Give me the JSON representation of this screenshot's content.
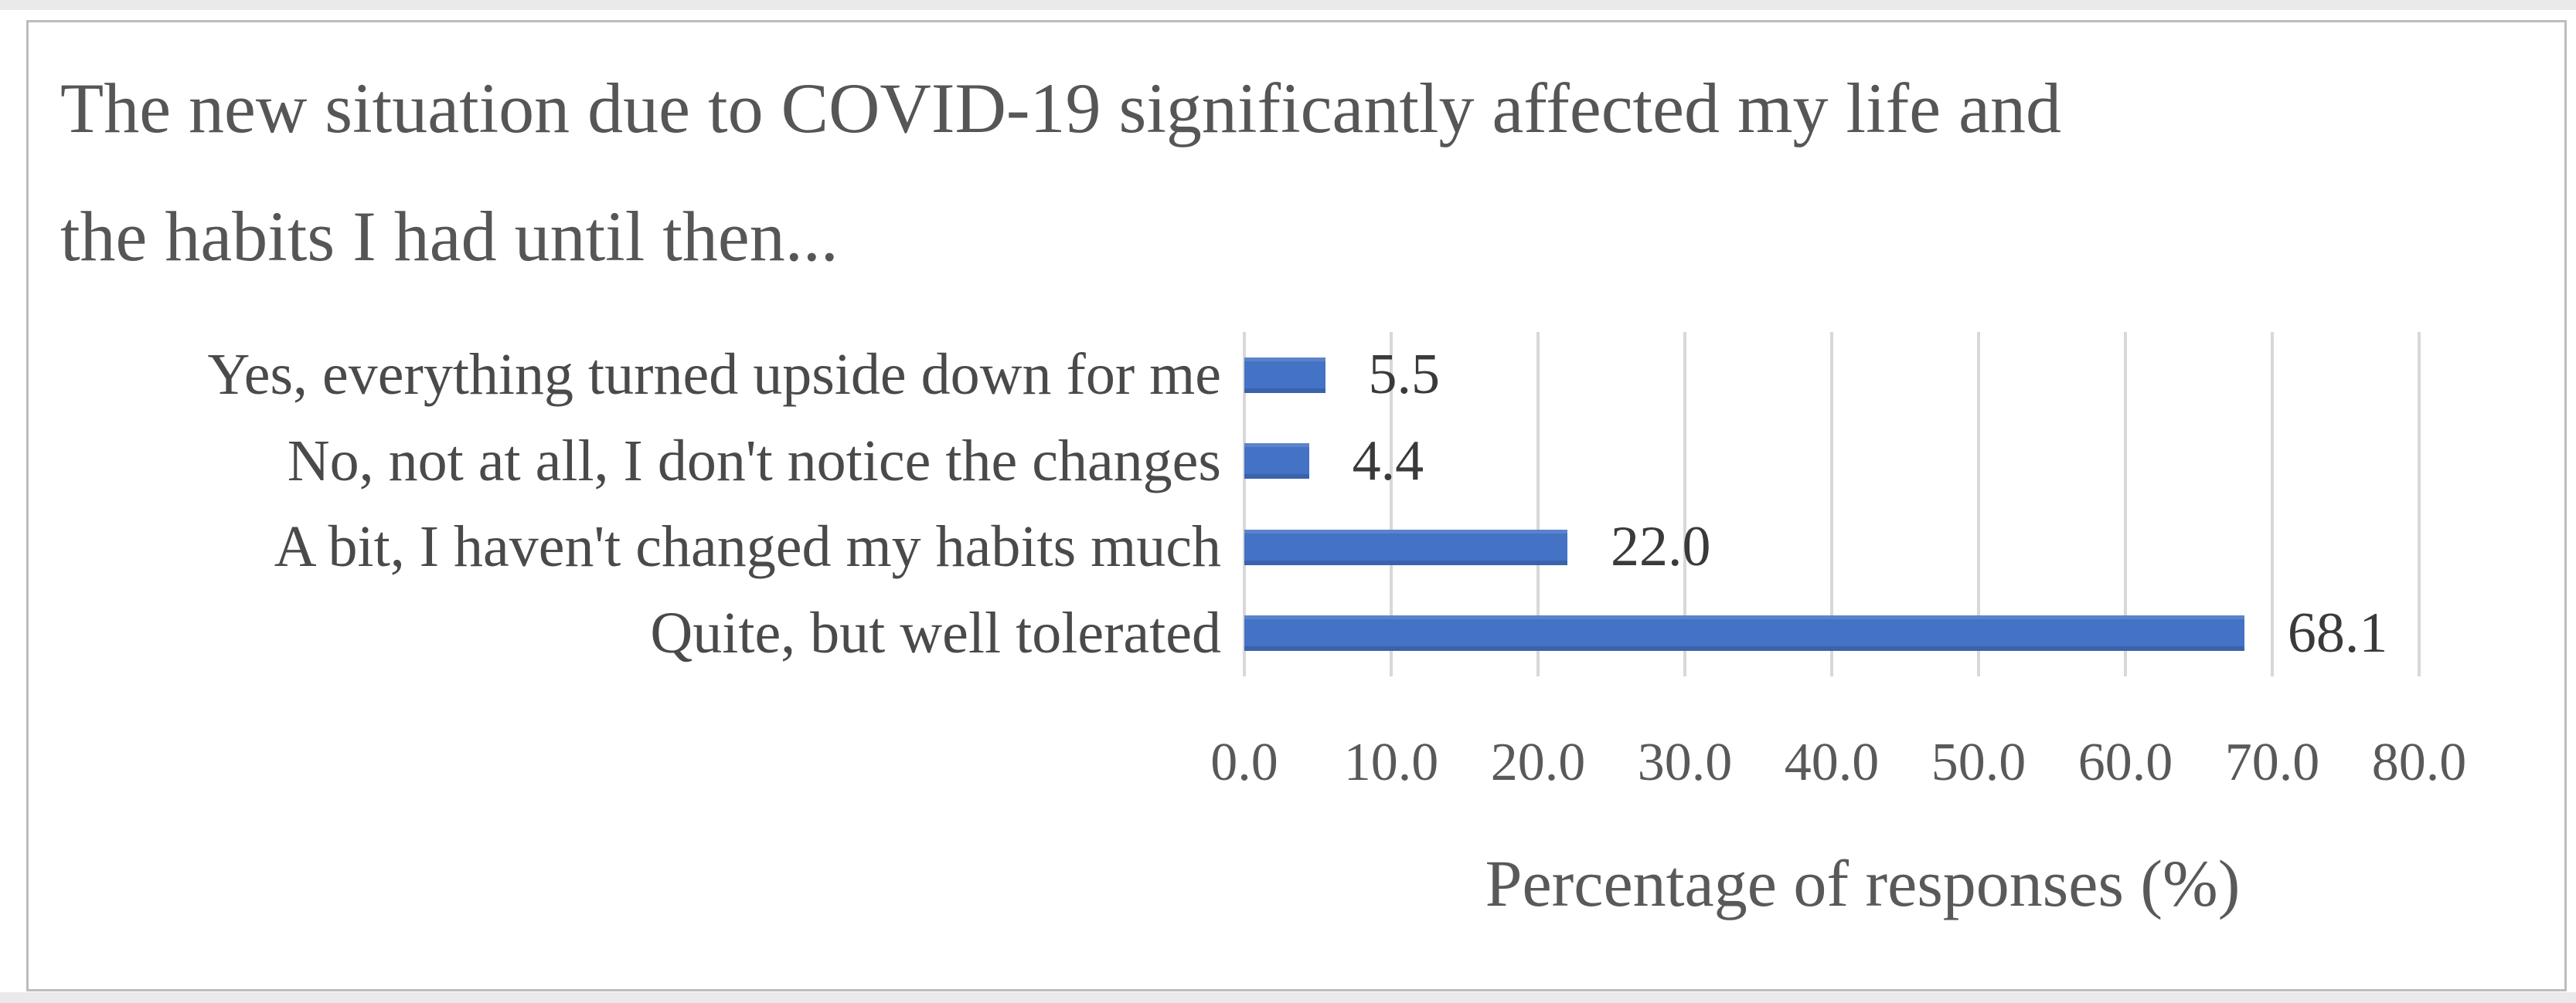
{
  "chart_data": {
    "type": "bar",
    "orientation": "horizontal",
    "title": "The new situation due to COVID-19 significantly affected my life and the habits I had until then...",
    "categories": [
      "Yes, everything turned upside down for me",
      "No, not at all, I don't notice the changes",
      "A bit, I haven't changed my habits much",
      "Quite, but well tolerated"
    ],
    "values": [
      5.5,
      4.4,
      22.0,
      68.1
    ],
    "value_labels": [
      "5.5",
      "4.4",
      "22.0",
      "68.1"
    ],
    "xlabel": "Percentage of responses (%)",
    "ylabel": "",
    "xlim": [
      0,
      80
    ],
    "xticks": [
      "0.0",
      "10.0",
      "20.0",
      "30.0",
      "40.0",
      "50.0",
      "60.0",
      "70.0",
      "80.0"
    ],
    "grid": "vertical-gridlines-on",
    "legend": "none",
    "bar_color": "#4472C4",
    "gridline_color": "#d8d8d8",
    "title_color": "#565656",
    "label_color": "#4a4a4a",
    "tick_color": "#595959",
    "value_label_color": "#3a3a3a"
  }
}
